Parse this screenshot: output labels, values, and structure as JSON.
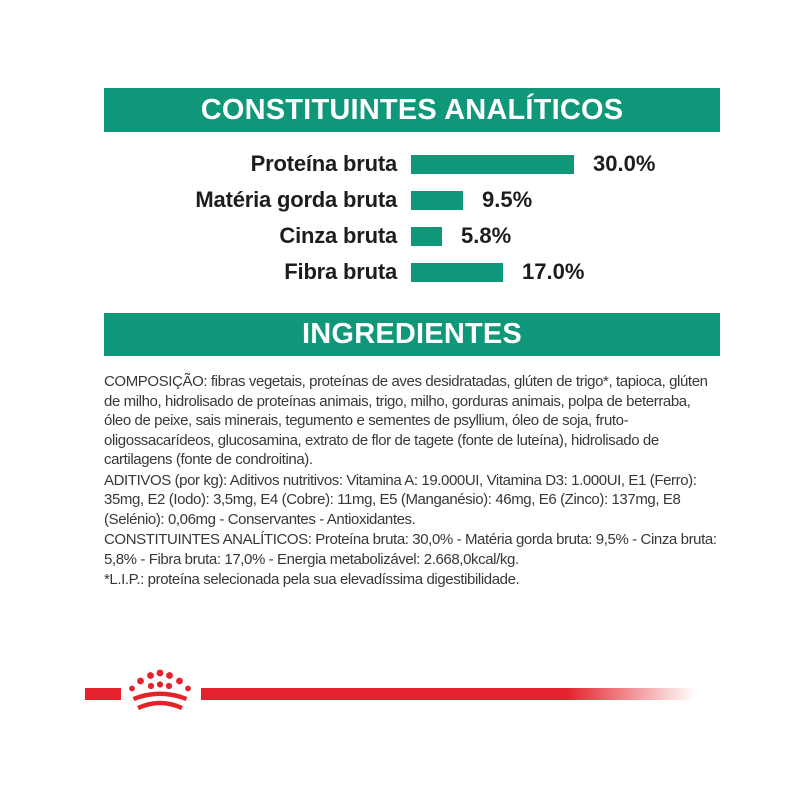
{
  "sections": {
    "analytics_title": "CONSTITUINTES ANALÍTICOS",
    "ingredients_title": "INGREDIENTES"
  },
  "chart_data": {
    "type": "bar",
    "orientation": "horizontal",
    "title": "CONSTITUINTES ANALÍTICOS",
    "categories": [
      "Proteína bruta",
      "Matéria gorda bruta",
      "Cinza bruta",
      "Fibra bruta"
    ],
    "values": [
      30.0,
      9.5,
      5.8,
      17.0
    ],
    "value_labels": [
      "30.0%",
      "9.5%",
      "5.8%",
      "17.0%"
    ],
    "unit": "%",
    "xlim": [
      0,
      30
    ],
    "axes_hidden": true,
    "grid": false,
    "data_labels_position": "right-of-bar",
    "bar_color": "#0E9778"
  },
  "ingredients": {
    "paragraphs": [
      "COMPOSIÇÃO: fibras vegetais, proteínas de aves desidratadas, glúten de trigo*, tapioca, glúten de milho, hidrolisado de proteínas animais, trigo, milho, gorduras animais, polpa de beterraba, óleo de peixe, sais minerais, tegumento e sementes de psyllium, óleo de soja, fruto-oligossacarídeos, glucosamina, extrato de flor de tagete (fonte de luteína), hidrolisado de cartilagens (fonte de condroitina).",
      "ADITIVOS (por kg): Aditivos nutritivos: Vitamina A: 19.000UI, Vitamina D3: 1.000UI, E1 (Ferro): 35mg, E2 (Iodo): 3,5mg, E4 (Cobre): 11mg, E5 (Manganésio): 46mg, E6 (Zinco): 137mg, E8 (Selénio): 0,06mg - Conservantes - Antioxidantes.",
      "CONSTITUINTES ANALÍTICOS: Proteína bruta: 30,0% - Matéria gorda bruta: 9,5% - Cinza bruta: 5,8% - Fibra bruta: 17,0% - Energia metabolizável: 2.668,0kcal/kg.",
      "*L.I.P.: proteína selecionada pela sua elevadíssima digestibilidade."
    ]
  },
  "branding": {
    "logo_icon": "royal-canin-crown-icon",
    "accent_red": "#E4222B"
  },
  "colors": {
    "header_green": "#0E9778",
    "body_text": "#383838",
    "background": "#FFFFFF"
  }
}
